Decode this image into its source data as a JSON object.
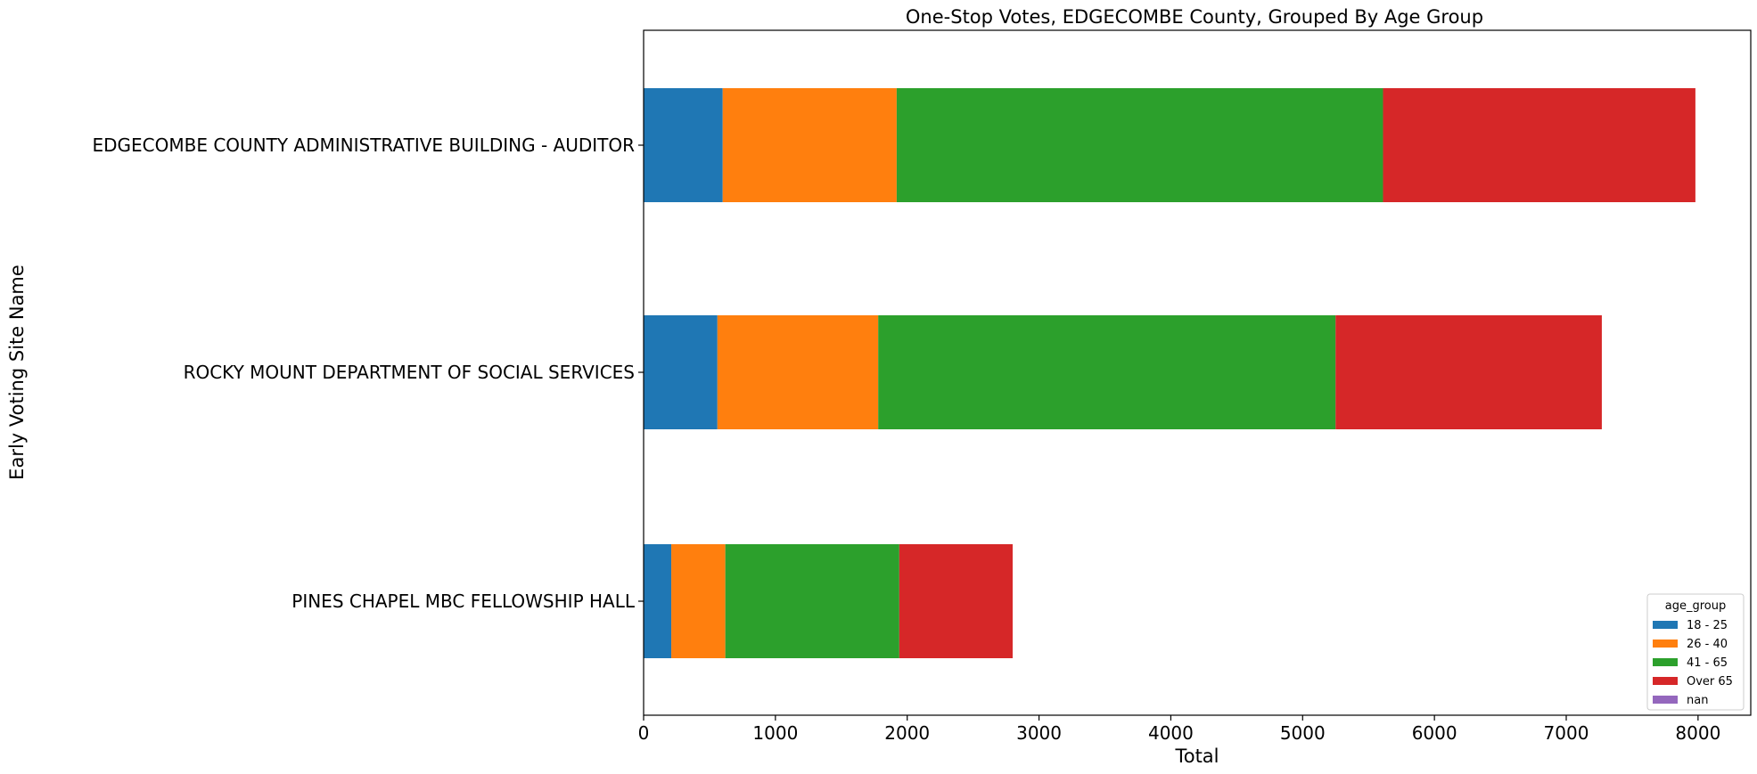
{
  "chart_data": {
    "type": "bar",
    "orientation": "horizontal",
    "stacked": true,
    "title": "One-Stop Votes, EDGECOMBE County, Grouped By Age Group",
    "xlabel": "Total",
    "ylabel": "Early Voting Site Name",
    "xlim": [
      0,
      8400
    ],
    "xticks": [
      0,
      1000,
      2000,
      3000,
      4000,
      5000,
      6000,
      7000,
      8000
    ],
    "categories": [
      "EDGECOMBE COUNTY ADMINISTRATIVE BUILDING - AUDITOR",
      "ROCKY MOUNT DEPARTMENT OF SOCIAL SERVICES",
      "PINES CHAPEL MBC FELLOWSHIP HALL"
    ],
    "series": [
      {
        "name": "18 - 25",
        "color": "#1f77b4",
        "values": [
          600,
          560,
          210
        ]
      },
      {
        "name": "26 - 40",
        "color": "#ff7f0e",
        "values": [
          1320,
          1220,
          410
        ]
      },
      {
        "name": "41 - 65",
        "color": "#2ca02c",
        "values": [
          3690,
          3470,
          1320
        ]
      },
      {
        "name": "Over 65",
        "color": "#d62728",
        "values": [
          2370,
          2020,
          860
        ]
      },
      {
        "name": "nan",
        "color": "#9467bd",
        "values": [
          0,
          0,
          0
        ]
      }
    ],
    "legend": {
      "title": "age_group",
      "placement": "bottom-right"
    },
    "grid": false
  }
}
